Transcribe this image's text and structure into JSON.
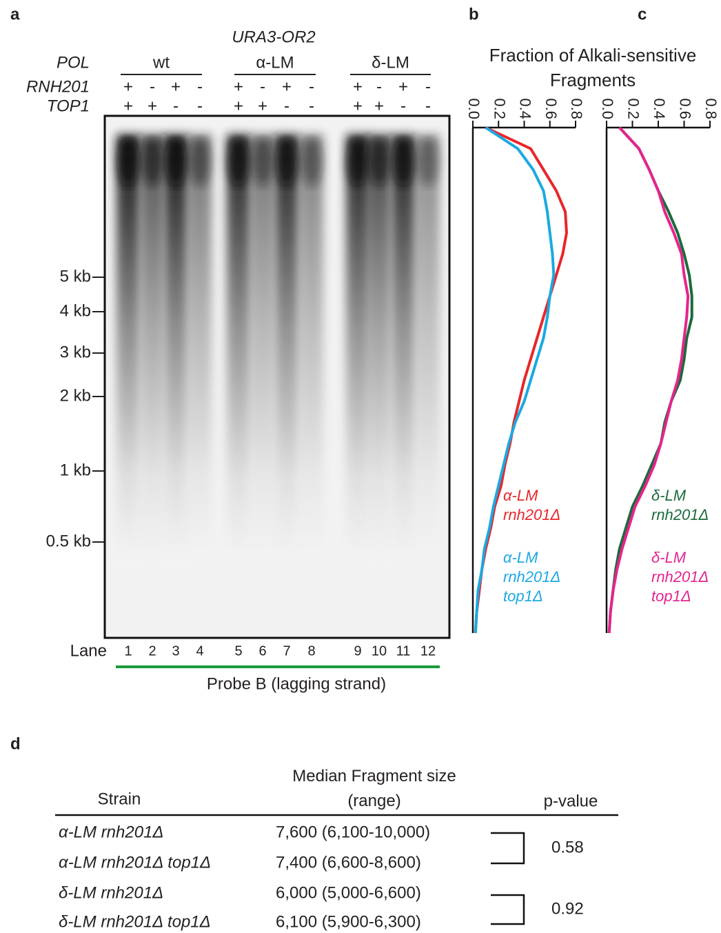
{
  "panel_labels": [
    "a",
    "b",
    "c",
    "d"
  ],
  "gel": {
    "title": "URA3-OR2",
    "row_labels": [
      "POL",
      "RNH201",
      "TOP1"
    ],
    "groups": [
      "wt",
      "α-LM",
      "δ-LM"
    ],
    "rnh201": [
      "+",
      "-",
      "+",
      "-",
      "+",
      "-",
      "+",
      "-",
      "+",
      "-",
      "+",
      "-"
    ],
    "top1": [
      "+",
      "+",
      "-",
      "-",
      "+",
      "+",
      "-",
      "-",
      "+",
      "+",
      "-",
      "-"
    ],
    "sign_colors": [
      "#231f20",
      "#231f20",
      "#231f20",
      "#231f20",
      "#231f20",
      "#e8262a",
      "#231f20",
      "#1ba9e1",
      "#231f20",
      "#1a6b3a",
      "#231f20",
      "#e5248e"
    ],
    "size_markers": [
      "5 kb",
      "4 kb",
      "3 kb",
      "2 kb",
      "1 kb",
      "0.5 kb"
    ],
    "lane_title": "Lane",
    "lanes": [
      1,
      2,
      3,
      4,
      5,
      6,
      7,
      8,
      9,
      10,
      11,
      12
    ],
    "probe": "Probe B (lagging strand)",
    "probe_color": "#1a9a3c"
  },
  "axis_title": "Fraction of Alkali-sensitive Fragments",
  "chart_data": [
    {
      "type": "line",
      "categories": [
        null,
        null,
        null,
        null,
        null,
        null,
        null,
        null,
        null,
        null,
        null,
        null,
        null,
        null,
        null,
        null,
        null,
        null,
        null,
        null,
        null,
        null,
        null,
        null,
        null
      ],
      "xlim": [
        0,
        0.8
      ],
      "xticks": [
        {
          "value": 0,
          "label": "0.0"
        },
        0.2,
        0.4,
        0.6,
        0.8
      ],
      "series": [
        {
          "name": "α-LM rnh201Δ",
          "color": "#e8262a",
          "values": [
            0.1,
            0.45,
            0.55,
            0.65,
            0.72,
            0.73,
            0.7,
            0.65,
            0.6,
            0.55,
            0.5,
            0.45,
            0.4,
            0.36,
            0.32,
            0.29,
            0.25,
            0.22,
            0.17,
            0.14,
            0.1,
            0.07,
            0.05,
            0.03,
            0.02
          ]
        },
        {
          "name": "α-LM rnh201Δ top1Δ",
          "color": "#1ba9e1",
          "values": [
            0.1,
            0.35,
            0.47,
            0.55,
            0.58,
            0.6,
            0.62,
            0.63,
            0.6,
            0.58,
            0.55,
            0.5,
            0.45,
            0.4,
            0.33,
            0.28,
            0.24,
            0.2,
            0.16,
            0.13,
            0.09,
            0.07,
            0.04,
            0.03,
            0.02
          ]
        }
      ]
    },
    {
      "type": "line",
      "categories": [
        null,
        null,
        null,
        null,
        null,
        null,
        null,
        null,
        null,
        null,
        null,
        null,
        null,
        null,
        null,
        null,
        null,
        null,
        null,
        null,
        null,
        null,
        null,
        null,
        null
      ],
      "xlim": [
        0,
        0.8
      ],
      "xticks": [
        {
          "value": 0,
          "label": "0.0"
        },
        0.2,
        0.4,
        0.6,
        0.8
      ],
      "series": [
        {
          "name": "δ-LM rnh201Δ",
          "color": "#1a6b3a",
          "values": [
            0.1,
            0.25,
            0.33,
            0.4,
            0.48,
            0.55,
            0.6,
            0.64,
            0.66,
            0.66,
            0.62,
            0.6,
            0.57,
            0.5,
            0.45,
            0.42,
            0.35,
            0.28,
            0.2,
            0.15,
            0.1,
            0.07,
            0.05,
            0.03,
            0.02
          ]
        },
        {
          "name": "δ-LM rnh201Δ top1Δ",
          "color": "#e5248e",
          "values": [
            0.1,
            0.25,
            0.33,
            0.4,
            0.45,
            0.52,
            0.58,
            0.6,
            0.63,
            0.62,
            0.6,
            0.58,
            0.55,
            0.5,
            0.46,
            0.42,
            0.37,
            0.3,
            0.22,
            0.17,
            0.12,
            0.08,
            0.05,
            0.03,
            0.02
          ]
        }
      ]
    }
  ],
  "table": {
    "headers": [
      "Strain",
      "Median Fragment size (range)",
      "p-value"
    ],
    "rows": [
      [
        "α-LM rnh201Δ",
        "7,600 (6,100-10,000)"
      ],
      [
        "α-LM rnh201Δ top1Δ",
        "7,400 (6,600-8,600)"
      ],
      [
        "δ-LM rnh201Δ",
        "6,000 (5,000-6,600)"
      ],
      [
        "δ-LM rnh201Δ top1Δ",
        "6,100 (5,900-6,300)"
      ]
    ],
    "row_colors": [
      "#e8262a",
      "#1ba9e1",
      "#1a6b3a",
      "#e5248e"
    ],
    "p_values": [
      "0.58",
      "0.92"
    ]
  }
}
